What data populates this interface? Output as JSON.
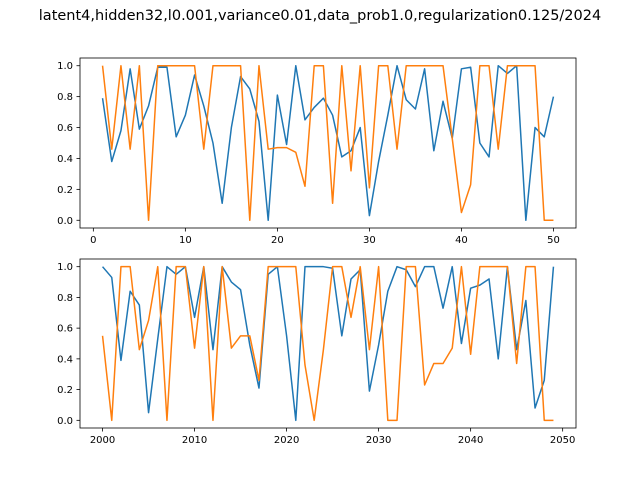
{
  "figure": {
    "title": "latent4,hidden32,l0.001,variance0.01,data_prob1.0,regularization0.125/2024"
  },
  "colors": {
    "series_1": "#1f77b4",
    "series_2": "#ff7f0e"
  },
  "chart_data": [
    {
      "type": "line",
      "xlim": [
        -1.45,
        52.45
      ],
      "ylim": [
        -0.05,
        1.05
      ],
      "xticks": [
        0,
        10,
        20,
        30,
        40,
        50
      ],
      "yticks": [
        0.0,
        0.2,
        0.4,
        0.6,
        0.8,
        1.0
      ],
      "xtick_labels": [
        "0",
        "10",
        "20",
        "30",
        "40",
        "50"
      ],
      "ytick_labels": [
        "0.0",
        "0.2",
        "0.4",
        "0.6",
        "0.8",
        "1.0"
      ],
      "x": [
        1,
        2,
        3,
        4,
        5,
        6,
        7,
        8,
        9,
        10,
        11,
        12,
        13,
        14,
        15,
        16,
        17,
        18,
        19,
        20,
        21,
        22,
        23,
        24,
        25,
        26,
        27,
        28,
        29,
        30,
        31,
        32,
        33,
        34,
        35,
        36,
        37,
        38,
        39,
        40,
        41,
        42,
        43,
        44,
        45,
        46,
        47,
        48,
        49,
        50
      ],
      "series": [
        {
          "values": [
            0.79,
            0.38,
            0.58,
            0.98,
            0.59,
            0.74,
            0.99,
            0.99,
            0.54,
            0.68,
            0.94,
            0.74,
            0.5,
            0.11,
            0.6,
            0.93,
            0.85,
            0.64,
            0.0,
            0.81,
            0.49,
            1.0,
            0.65,
            0.73,
            0.79,
            0.68,
            0.41,
            0.45,
            0.6,
            0.03,
            0.38,
            0.68,
            1.0,
            0.78,
            0.72,
            0.98,
            0.45,
            0.77,
            0.53,
            0.98,
            0.99,
            0.5,
            0.41,
            1.0,
            0.95,
            1.0,
            0.0,
            0.6,
            0.54,
            0.8
          ]
        },
        {
          "values": [
            1.0,
            0.46,
            1.0,
            0.46,
            1.0,
            0.0,
            1.0,
            1.0,
            1.0,
            1.0,
            1.0,
            0.46,
            1.0,
            1.0,
            1.0,
            1.0,
            0.0,
            1.0,
            0.46,
            0.47,
            0.47,
            0.44,
            0.22,
            1.0,
            1.0,
            0.11,
            1.0,
            0.32,
            1.0,
            0.21,
            1.0,
            1.0,
            0.46,
            1.0,
            1.0,
            1.0,
            1.0,
            1.0,
            0.53,
            0.05,
            0.23,
            1.0,
            1.0,
            0.46,
            1.0,
            1.0,
            1.0,
            1.0,
            0.0,
            0.0
          ]
        }
      ]
    },
    {
      "type": "line",
      "xlim": [
        1997.55,
        2051.45
      ],
      "ylim": [
        -0.05,
        1.05
      ],
      "xticks": [
        2000,
        2010,
        2020,
        2030,
        2040,
        2050
      ],
      "yticks": [
        0.0,
        0.2,
        0.4,
        0.6,
        0.8,
        1.0
      ],
      "xtick_labels": [
        "2000",
        "2010",
        "2020",
        "2030",
        "2040",
        "2050"
      ],
      "ytick_labels": [
        "0.0",
        "0.2",
        "0.4",
        "0.6",
        "0.8",
        "1.0"
      ],
      "x": [
        2000,
        2001,
        2002,
        2003,
        2004,
        2005,
        2006,
        2007,
        2008,
        2009,
        2010,
        2011,
        2012,
        2013,
        2014,
        2015,
        2016,
        2017,
        2018,
        2019,
        2020,
        2021,
        2022,
        2023,
        2024,
        2025,
        2026,
        2027,
        2028,
        2029,
        2030,
        2031,
        2032,
        2033,
        2034,
        2035,
        2036,
        2037,
        2038,
        2039,
        2040,
        2041,
        2042,
        2043,
        2044,
        2045,
        2046,
        2047,
        2048,
        2049
      ],
      "series": [
        {
          "values": [
            1.0,
            0.93,
            0.39,
            0.84,
            0.75,
            0.05,
            0.53,
            1.0,
            0.95,
            1.0,
            0.67,
            1.0,
            0.46,
            1.0,
            0.9,
            0.85,
            0.49,
            0.21,
            0.95,
            1.0,
            0.55,
            0.0,
            1.0,
            1.0,
            1.0,
            0.99,
            0.55,
            0.92,
            0.98,
            0.19,
            0.49,
            0.84,
            1.0,
            0.98,
            0.87,
            1.0,
            1.0,
            0.73,
            1.0,
            0.5,
            0.86,
            0.88,
            0.92,
            0.4,
            1.0,
            0.46,
            0.78,
            0.08,
            0.26,
            1.0
          ]
        },
        {
          "values": [
            0.55,
            0.0,
            1.0,
            1.0,
            0.46,
            0.65,
            1.0,
            0.0,
            1.0,
            1.0,
            0.47,
            1.0,
            0.0,
            1.0,
            0.47,
            0.55,
            0.55,
            0.26,
            1.0,
            1.0,
            1.0,
            1.0,
            0.36,
            0.0,
            0.46,
            1.0,
            1.0,
            0.67,
            1.0,
            0.46,
            1.0,
            0.0,
            0.0,
            1.0,
            1.0,
            0.23,
            0.37,
            0.37,
            0.47,
            1.0,
            0.43,
            1.0,
            1.0,
            1.0,
            1.0,
            0.37,
            1.0,
            1.0,
            0.0,
            0.0
          ]
        }
      ]
    }
  ]
}
